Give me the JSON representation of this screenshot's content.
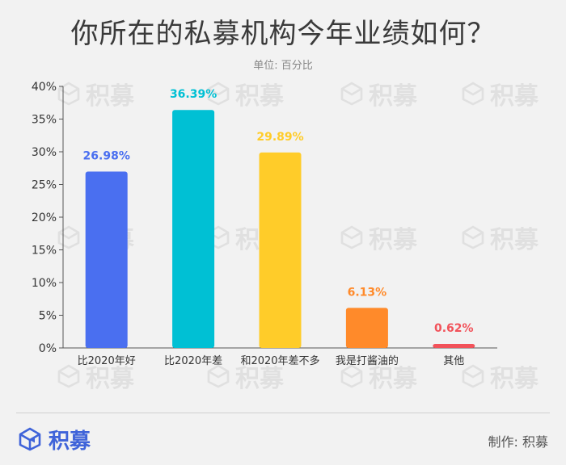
{
  "header": {
    "title": "你所在的私募机构今年业绩如何？",
    "unit": "单位: 百分比"
  },
  "chart_data": {
    "type": "bar",
    "categories": [
      "比2020年好",
      "比2020年差",
      "和2020年差不多",
      "我是打酱油的",
      "其他"
    ],
    "values": [
      26.98,
      36.39,
      29.89,
      6.13,
      0.62
    ],
    "value_labels": [
      "26.98%",
      "36.39%",
      "29.89%",
      "6.13%",
      "0.62%"
    ],
    "colors": [
      "#4a6ff0",
      "#00c0d4",
      "#ffcc29",
      "#ff8a2a",
      "#f2525a"
    ],
    "ylim": [
      0,
      40
    ],
    "yticks": [
      "0%",
      "5%",
      "10%",
      "15%",
      "20%",
      "25%",
      "30%",
      "35%",
      "40%"
    ],
    "ytick_values": [
      0,
      5,
      10,
      15,
      20,
      25,
      30,
      35,
      40
    ],
    "grid": false
  },
  "footer": {
    "brand": "积募",
    "maker": "制作:  积募"
  },
  "watermark": {
    "text": "积募",
    "icon": "cube-logo-icon"
  }
}
